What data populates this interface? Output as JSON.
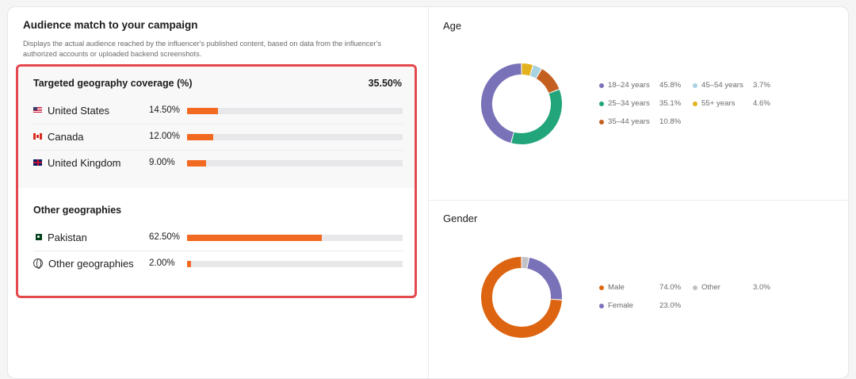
{
  "header": {
    "title": "Audience match to your campaign",
    "description": "Displays the actual audience reached by the influencer's published content, based on data from the influencer's authorized accounts or uploaded backend screenshots."
  },
  "targeted": {
    "title": "Targeted geography coverage (%)",
    "total": "35.50%",
    "rows": [
      {
        "country": "United States",
        "percent_label": "14.50%",
        "value": 14.5,
        "flag": "us-flag-icon"
      },
      {
        "country": "Canada",
        "percent_label": "12.00%",
        "value": 12.0,
        "flag": "canada-flag-icon"
      },
      {
        "country": "United Kingdom",
        "percent_label": "9.00%",
        "value": 9.0,
        "flag": "uk-flag-icon"
      }
    ]
  },
  "other": {
    "title": "Other geographies",
    "rows": [
      {
        "country": "Pakistan",
        "percent_label": "62.50%",
        "value": 62.5,
        "flag": "pakistan-flag-icon"
      },
      {
        "country": "Other geographies",
        "percent_label": "2.00%",
        "value": 2.0,
        "flag": "globe-icon"
      }
    ]
  },
  "colors": {
    "bar": "#f26a21",
    "highlight_border": "#e5484d"
  },
  "chart_data": [
    {
      "type": "pie",
      "title": "Age",
      "categories": [
        "18–24 years",
        "45–54 years",
        "25–34 years",
        "55+ years",
        "35–44 years"
      ],
      "values": [
        45.8,
        3.7,
        35.1,
        4.6,
        10.8
      ],
      "value_labels": [
        "45.8%",
        "3.7%",
        "35.1%",
        "4.6%",
        "10.8%"
      ],
      "colors": [
        "#7a72b8",
        "#a9d3e0",
        "#22a57a",
        "#e3b21e",
        "#c4601f"
      ],
      "draw_order": [
        "55+ years",
        "45–54 years",
        "35–44 years",
        "25–34 years",
        "18–24 years"
      ]
    },
    {
      "type": "pie",
      "title": "Gender",
      "categories": [
        "Male",
        "Other",
        "Female"
      ],
      "values": [
        74.0,
        3.0,
        23.0
      ],
      "value_labels": [
        "74.0%",
        "3.0%",
        "23.0%"
      ],
      "colors": [
        "#dd6410",
        "#c2c2c6",
        "#7a72b8"
      ],
      "draw_order": [
        "Other",
        "Female",
        "Male"
      ]
    }
  ]
}
